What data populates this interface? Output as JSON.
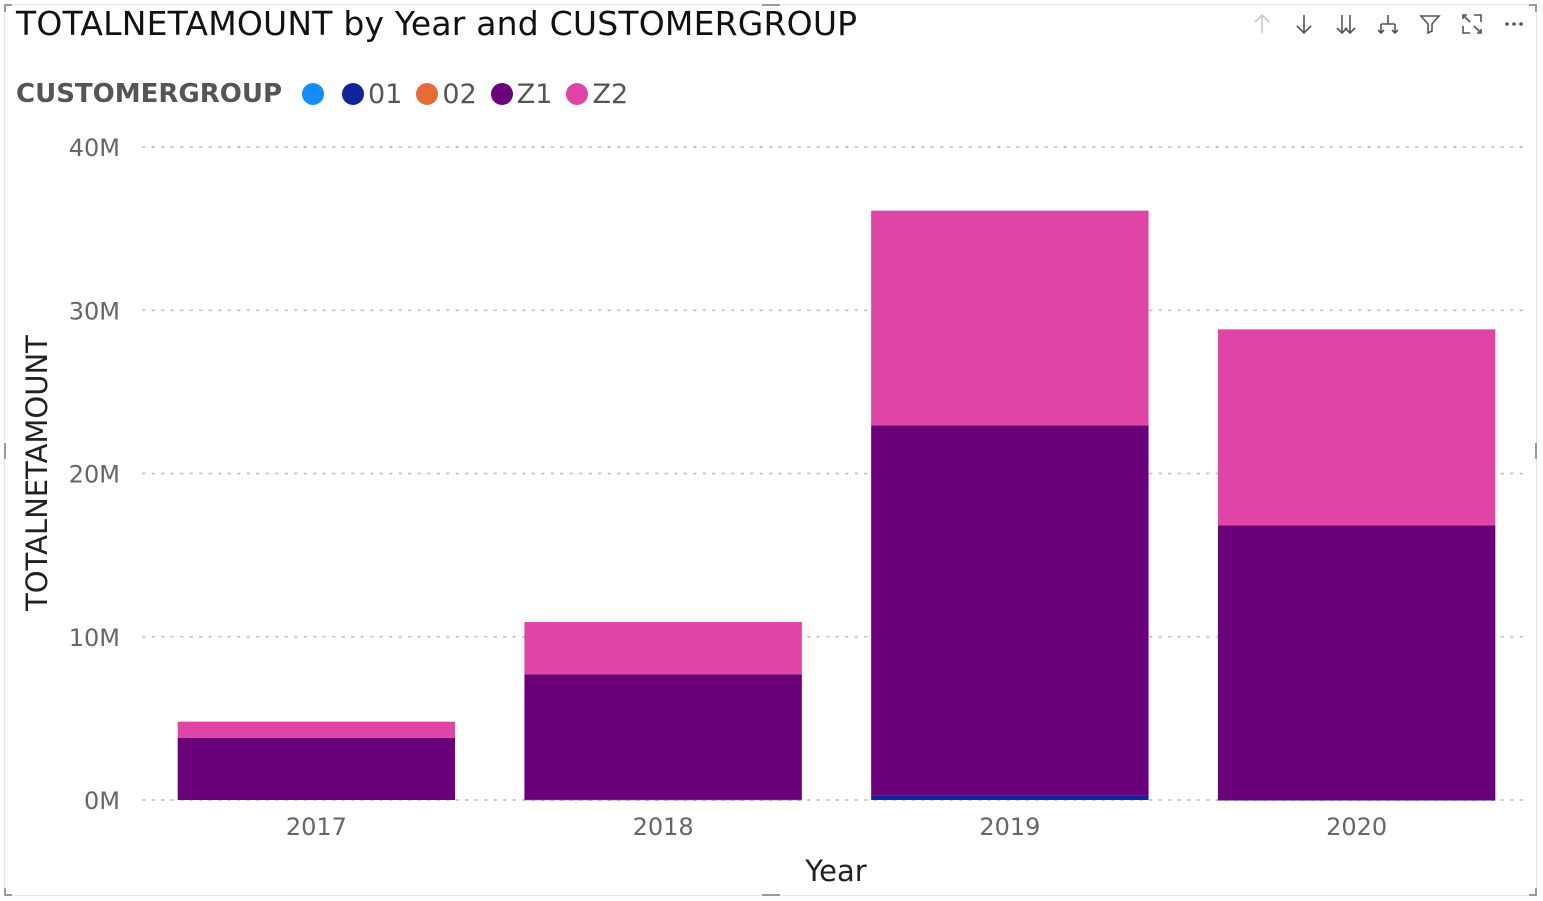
{
  "title": "TOTALNETAMOUNT by Year and CUSTOMERGROUP",
  "toolbar": [
    {
      "name": "drill-up-icon"
    },
    {
      "name": "drill-down-icon"
    },
    {
      "name": "expand-next-level-icon"
    },
    {
      "name": "expand-hierarchy-icon"
    },
    {
      "name": "filter-icon"
    },
    {
      "name": "focus-mode-icon"
    },
    {
      "name": "more-options-icon"
    }
  ],
  "legend": {
    "title": "CUSTOMERGROUP",
    "items": [
      {
        "label": "",
        "color": "#118DFF"
      },
      {
        "label": "01",
        "color": "#12239E"
      },
      {
        "label": "02",
        "color": "#E66C37"
      },
      {
        "label": "Z1",
        "color": "#6B007B"
      },
      {
        "label": "Z2",
        "color": "#E044A7"
      }
    ]
  },
  "chart_data": {
    "type": "bar",
    "stacked": true,
    "title": "TOTALNETAMOUNT by Year and CUSTOMERGROUP",
    "xlabel": "Year",
    "ylabel": "TOTALNETAMOUNT",
    "categories": [
      "2017",
      "2018",
      "2019",
      "2020"
    ],
    "ylim": [
      0,
      40000000
    ],
    "yticks": [
      {
        "value": 0,
        "label": "0M"
      },
      {
        "value": 10000000,
        "label": "10M"
      },
      {
        "value": 20000000,
        "label": "20M"
      },
      {
        "value": 30000000,
        "label": "30M"
      },
      {
        "value": 40000000,
        "label": "40M"
      }
    ],
    "grid": true,
    "legend_position": "top-left",
    "series": [
      {
        "name": "",
        "color": "#118DFF",
        "values": [
          0,
          0,
          0,
          0
        ]
      },
      {
        "name": "01",
        "color": "#12239E",
        "values": [
          0,
          50000,
          250000,
          30000
        ]
      },
      {
        "name": "02",
        "color": "#E66C37",
        "values": [
          0,
          0,
          0,
          0
        ]
      },
      {
        "name": "Z1",
        "color": "#6B007B",
        "values": [
          3800000,
          7650000,
          22700000,
          16800000
        ]
      },
      {
        "name": "Z2",
        "color": "#E044A7",
        "values": [
          1000000,
          3200000,
          13150000,
          12000000
        ]
      }
    ]
  }
}
